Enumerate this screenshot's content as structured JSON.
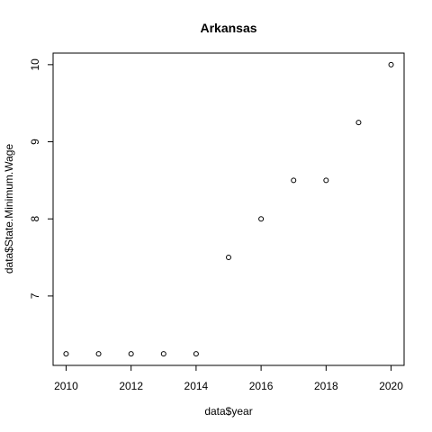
{
  "chart_data": {
    "type": "scatter",
    "title": "Arkansas",
    "xlabel": "data$year",
    "ylabel": "data$State.Minimum.Wage",
    "x": [
      2010,
      2011,
      2012,
      2013,
      2014,
      2015,
      2016,
      2017,
      2018,
      2019,
      2020
    ],
    "y": [
      6.25,
      6.25,
      6.25,
      6.25,
      6.25,
      7.5,
      8.0,
      8.5,
      8.5,
      9.25,
      10.0
    ],
    "xlim": [
      2009.6,
      2020.4
    ],
    "ylim": [
      6.1,
      10.15
    ],
    "xticks": [
      2010,
      2012,
      2014,
      2016,
      2018,
      2020
    ],
    "yticks": [
      7,
      8,
      9,
      10
    ],
    "grid": false,
    "marker": "open-circle",
    "colors": {
      "points": "#000000",
      "axis": "#000000"
    }
  }
}
